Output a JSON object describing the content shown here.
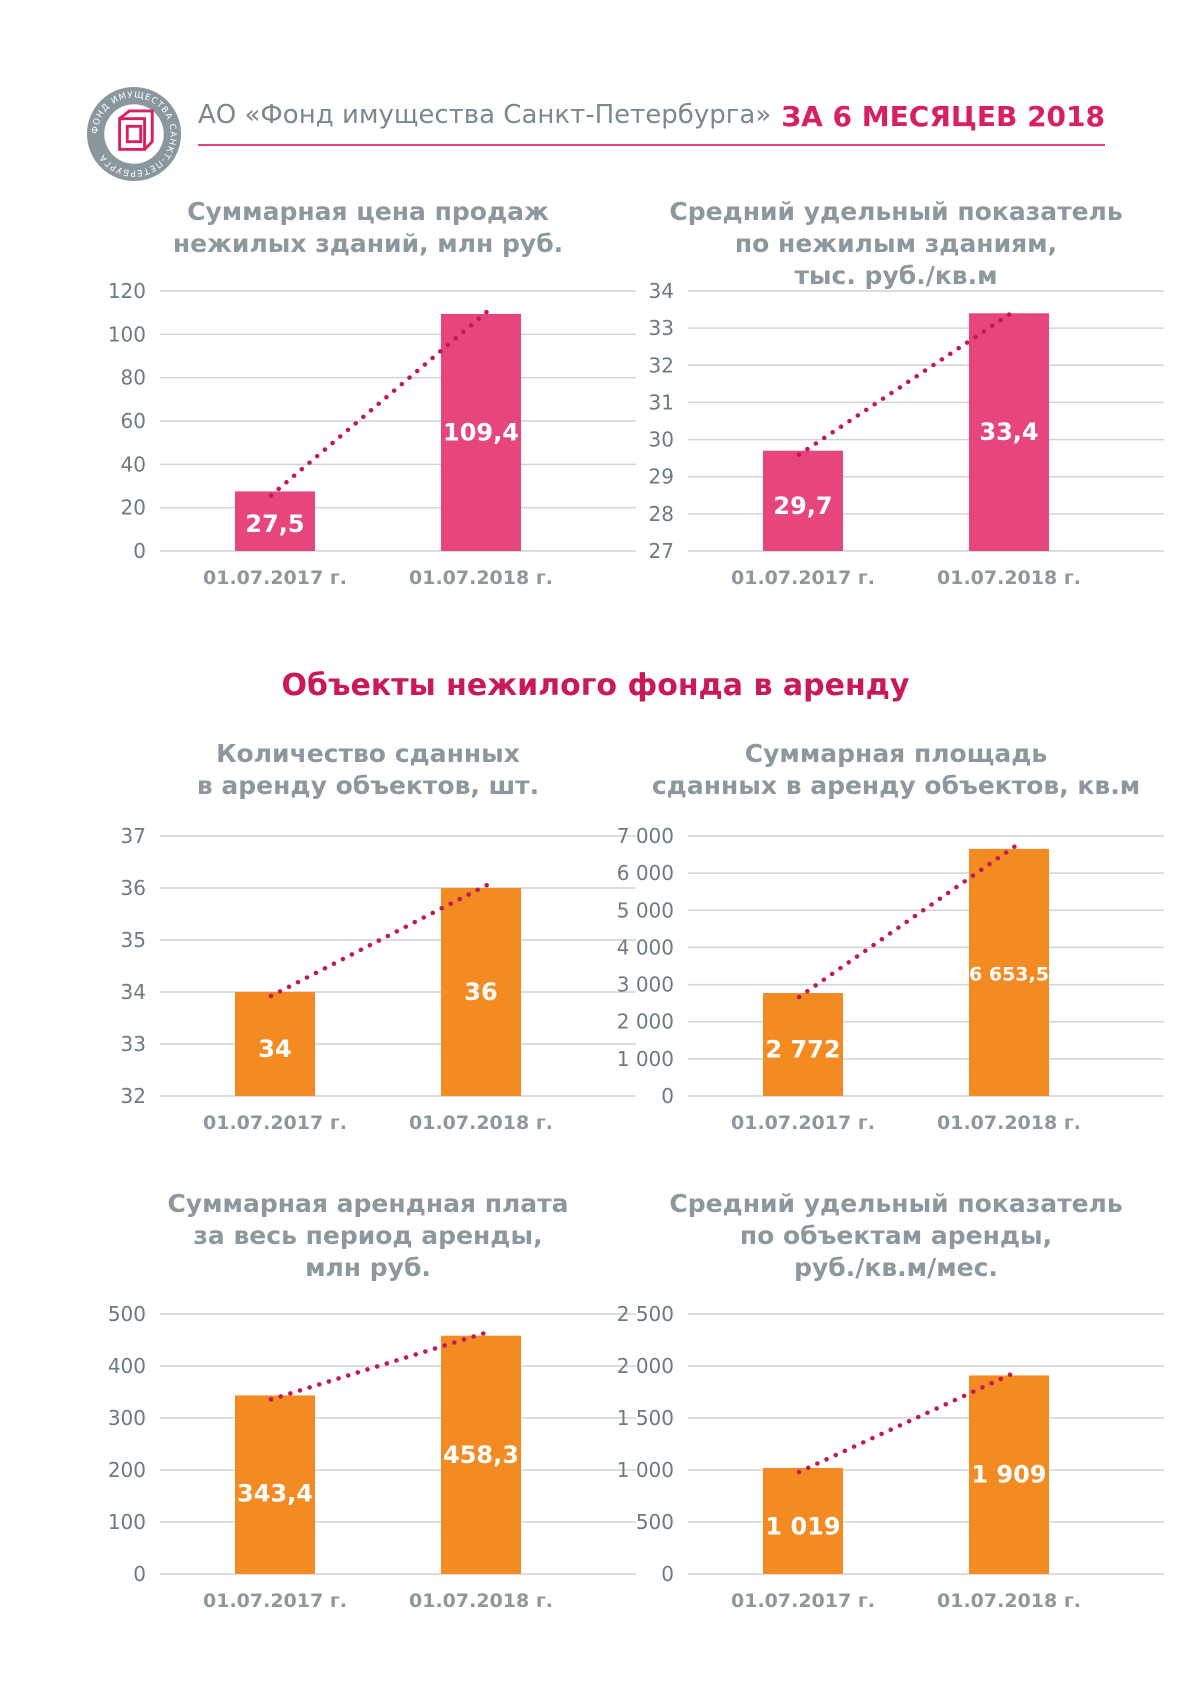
{
  "header": {
    "organization": "АО «Фонд имущества Санкт-Петербурга»",
    "period": "ЗА 6 МЕСЯЦЕВ 2018",
    "logo_text": "ФОНД ИМУЩЕСТВА САНКТ-ПЕТЕРБУРГА"
  },
  "section_title": "Объекты нежилого фонда в аренду",
  "colors": {
    "pink": "#e6467b",
    "orange": "#f38a22",
    "trend": "#c2185b",
    "grid": "#cfd4d7"
  },
  "chart_data": [
    {
      "type": "bar",
      "title": "Суммарная цена продаж\nнежилых зданий, млн руб.",
      "categories": [
        "01.07.2017 г.",
        "01.07.2018 г."
      ],
      "values": [
        27.5,
        109.4
      ],
      "value_labels": [
        "27,5",
        "109,4"
      ],
      "ylim": [
        0,
        120
      ],
      "yticks": [
        0,
        20,
        40,
        60,
        80,
        100,
        120
      ],
      "ytick_labels": [
        "0",
        "20",
        "40",
        "60",
        "80",
        "100",
        "120"
      ],
      "color": "#e6467b",
      "trendline": "dotted",
      "grid": true
    },
    {
      "type": "bar",
      "title": "Средний удельный показатель\nпо нежилым зданиям,\nтыс. руб./кв.м",
      "categories": [
        "01.07.2017 г.",
        "01.07.2018 г."
      ],
      "values": [
        29.7,
        33.4
      ],
      "value_labels": [
        "29,7",
        "33,4"
      ],
      "ylim": [
        27,
        34
      ],
      "yticks": [
        27,
        28,
        29,
        30,
        31,
        32,
        33,
        34
      ],
      "ytick_labels": [
        "27",
        "28",
        "29",
        "30",
        "31",
        "32",
        "33",
        "34"
      ],
      "color": "#e6467b",
      "trendline": "dotted",
      "grid": true
    },
    {
      "type": "bar",
      "title": "Количество сданных\nв аренду объектов, шт.",
      "categories": [
        "01.07.2017 г.",
        "01.07.2018 г."
      ],
      "values": [
        34,
        36
      ],
      "value_labels": [
        "34",
        "36"
      ],
      "ylim": [
        32,
        37
      ],
      "yticks": [
        32,
        33,
        34,
        35,
        36,
        37
      ],
      "ytick_labels": [
        "32",
        "33",
        "34",
        "35",
        "36",
        "37"
      ],
      "color": "#f38a22",
      "trendline": "dotted",
      "grid": true
    },
    {
      "type": "bar",
      "title": "Суммарная площадь\nсданных в аренду объектов, кв.м",
      "categories": [
        "01.07.2017 г.",
        "01.07.2018 г."
      ],
      "values": [
        2772,
        6653.5
      ],
      "value_labels": [
        "2 772",
        "6 653,5"
      ],
      "ylim": [
        0,
        7000
      ],
      "yticks": [
        0,
        1000,
        2000,
        3000,
        4000,
        5000,
        6000,
        7000
      ],
      "ytick_labels": [
        "0",
        "1 000",
        "2 000",
        "3 000",
        "4 000",
        "5 000",
        "6 000",
        "7 000"
      ],
      "color": "#f38a22",
      "trendline": "dotted",
      "grid": true
    },
    {
      "type": "bar",
      "title": "Суммарная арендная плата\nза весь период аренды,\nмлн руб.",
      "categories": [
        "01.07.2017 г.",
        "01.07.2018 г."
      ],
      "values": [
        343.4,
        458.3
      ],
      "value_labels": [
        "343,4",
        "458,3"
      ],
      "ylim": [
        0,
        500
      ],
      "yticks": [
        0,
        100,
        200,
        300,
        400,
        500
      ],
      "ytick_labels": [
        "0",
        "100",
        "200",
        "300",
        "400",
        "500"
      ],
      "color": "#f38a22",
      "trendline": "dotted",
      "grid": true
    },
    {
      "type": "bar",
      "title": "Средний удельный показатель\nпо объектам аренды,\nруб./кв.м/мес.",
      "categories": [
        "01.07.2017 г.",
        "01.07.2018 г."
      ],
      "values": [
        1019,
        1909
      ],
      "value_labels": [
        "1 019",
        "1 909"
      ],
      "ylim": [
        0,
        2500
      ],
      "yticks": [
        0,
        500,
        1000,
        1500,
        2000,
        2500
      ],
      "ytick_labels": [
        "0",
        "500",
        "1 000",
        "1 500",
        "2 000",
        "2 500"
      ],
      "color": "#f38a22",
      "trendline": "dotted",
      "grid": true
    }
  ]
}
